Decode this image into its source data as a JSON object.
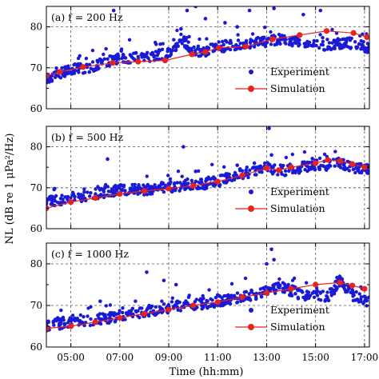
{
  "chart_data": {
    "type": "scatter",
    "xlabel": "Time (hh:mm)",
    "ylabel": "NL (dB re 1 μPa²/Hz)",
    "x_tick_labels": [
      "05:00",
      "07:00",
      "09:00",
      "11:00",
      "13:00",
      "15:00",
      "17:00"
    ],
    "x_ticks_hours": [
      5,
      7,
      9,
      11,
      13,
      15,
      17
    ],
    "xlim_hours": [
      4.0,
      17.2
    ],
    "ylim": [
      60,
      85
    ],
    "y_ticks": [
      60,
      70,
      80
    ],
    "grid": true,
    "legend_placement": "bottom-right",
    "legend": [
      "Experiment",
      "Simulation"
    ],
    "colors": {
      "experiment": "#1a1ad6",
      "simulation": "#e8231f"
    },
    "panels": [
      {
        "label": "(a)  f =  200 Hz",
        "frequency_hz": 200,
        "experiment": {
          "x_hours": [
            4.0,
            4.5,
            5.0,
            5.5,
            6.0,
            6.5,
            7.0,
            7.5,
            8.0,
            8.5,
            9.0,
            9.5,
            10.0,
            10.5,
            11.0,
            11.5,
            12.0,
            12.5,
            13.0,
            13.5,
            14.0,
            14.5,
            15.0,
            15.5,
            16.0,
            16.5,
            17.0
          ],
          "y": [
            67.5,
            68.5,
            69.5,
            70.0,
            70.5,
            71.5,
            72.0,
            72.5,
            72.8,
            73.0,
            73.5,
            77.0,
            74.0,
            74.0,
            75.0,
            75.5,
            75.5,
            76.0,
            76.5,
            77.0,
            76.5,
            76.0,
            76.0,
            75.5,
            76.0,
            76.0,
            75.0
          ],
          "outliers": [
            {
              "x": 6.75,
              "y": 84
            },
            {
              "x": 7.5,
              "y": 86
            },
            {
              "x": 9.75,
              "y": 84
            },
            {
              "x": 10.1,
              "y": 85
            },
            {
              "x": 10.5,
              "y": 82
            },
            {
              "x": 11.3,
              "y": 81
            },
            {
              "x": 11.8,
              "y": 80
            },
            {
              "x": 12.3,
              "y": 84
            },
            {
              "x": 13.3,
              "y": 84.5
            },
            {
              "x": 14.5,
              "y": 83
            },
            {
              "x": 15.2,
              "y": 84
            },
            {
              "x": 9.5,
              "y": 79.5
            }
          ]
        },
        "simulation": {
          "x_hours": [
            4.0,
            4.55,
            5.5,
            6.7,
            7.75,
            8.85,
            9.95,
            10.5,
            11.05,
            12.15,
            13.25,
            14.35,
            15.45,
            16.55,
            17.1
          ],
          "y": [
            68.0,
            69.0,
            70.2,
            71.2,
            71.5,
            71.8,
            73.3,
            73.9,
            74.9,
            75.2,
            77.0,
            78.0,
            79.0,
            78.5,
            77.5
          ]
        }
      },
      {
        "label": "(b)  f =  500 Hz",
        "frequency_hz": 500,
        "experiment": {
          "x_hours": [
            4.0,
            4.5,
            5.0,
            5.5,
            6.0,
            6.5,
            7.0,
            7.5,
            8.0,
            8.5,
            9.0,
            9.5,
            10.0,
            10.5,
            11.0,
            11.5,
            12.0,
            12.5,
            13.0,
            13.5,
            14.0,
            14.5,
            15.0,
            15.5,
            16.0,
            16.5,
            17.0
          ],
          "y": [
            66.5,
            67.0,
            67.5,
            68.0,
            68.5,
            69.0,
            69.5,
            69.5,
            69.5,
            70.0,
            70.0,
            70.5,
            70.5,
            71.0,
            71.5,
            72.5,
            73.5,
            74.0,
            75.0,
            74.0,
            74.5,
            75.0,
            75.5,
            75.5,
            76.0,
            75.0,
            74.5
          ],
          "outliers": [
            {
              "x": 6.5,
              "y": 77
            },
            {
              "x": 9.6,
              "y": 80
            },
            {
              "x": 10.1,
              "y": 74
            },
            {
              "x": 12.5,
              "y": 76
            },
            {
              "x": 13.1,
              "y": 84.5
            },
            {
              "x": 13.2,
              "y": 78
            },
            {
              "x": 11.8,
              "y": 75.5
            }
          ]
        },
        "simulation": {
          "x_hours": [
            4.0,
            5.0,
            6.0,
            7.0,
            8.0,
            9.0,
            10.0,
            11.0,
            12.0,
            13.0,
            13.5,
            14.0,
            15.0,
            15.5,
            16.0,
            16.5,
            17.0
          ],
          "y": [
            65.0,
            66.5,
            67.5,
            68.5,
            69.2,
            69.8,
            70.5,
            71.5,
            73.0,
            74.8,
            74.3,
            75.0,
            76.0,
            76.8,
            76.5,
            75.8,
            75.0
          ]
        }
      },
      {
        "label": "(c)  f =  1000 Hz",
        "frequency_hz": 1000,
        "experiment": {
          "x_hours": [
            4.0,
            4.5,
            5.0,
            5.5,
            6.0,
            6.5,
            7.0,
            7.5,
            8.0,
            8.5,
            9.0,
            9.5,
            10.0,
            10.5,
            11.0,
            11.5,
            12.0,
            12.5,
            13.0,
            13.5,
            14.0,
            14.5,
            15.0,
            15.5,
            16.0,
            16.5,
            17.0
          ],
          "y": [
            65.0,
            65.5,
            66.0,
            66.0,
            66.5,
            67.0,
            67.5,
            68.0,
            68.5,
            69.0,
            69.5,
            70.0,
            70.0,
            70.5,
            71.0,
            71.5,
            72.0,
            72.5,
            73.5,
            74.5,
            73.5,
            72.5,
            73.0,
            72.0,
            76.0,
            72.5,
            71.0
          ],
          "outliers": [
            {
              "x": 8.1,
              "y": 78
            },
            {
              "x": 8.8,
              "y": 76
            },
            {
              "x": 9.3,
              "y": 75
            },
            {
              "x": 11.0,
              "y": 72.5
            },
            {
              "x": 13.0,
              "y": 80
            },
            {
              "x": 13.2,
              "y": 83.5
            },
            {
              "x": 13.3,
              "y": 81
            },
            {
              "x": 6.2,
              "y": 71
            }
          ]
        },
        "simulation": {
          "x_hours": [
            4.0,
            5.0,
            6.0,
            7.0,
            8.0,
            9.0,
            10.0,
            11.0,
            12.0,
            13.0,
            14.0,
            15.0,
            16.0,
            16.5,
            17.0
          ],
          "y": [
            64.5,
            65.0,
            66.0,
            67.0,
            68.0,
            69.0,
            70.0,
            70.8,
            72.0,
            73.0,
            74.0,
            75.0,
            75.5,
            74.8,
            74.0
          ]
        }
      }
    ]
  }
}
